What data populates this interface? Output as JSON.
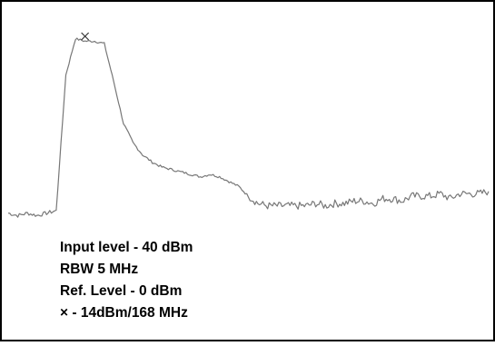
{
  "chart_data": {
    "type": "line",
    "title": "",
    "xlabel": "",
    "ylabel": "",
    "grid": false,
    "legend": "none",
    "x": [
      0,
      2,
      4,
      6,
      8,
      10,
      12,
      14,
      16,
      18,
      20,
      22,
      24,
      26,
      28,
      30,
      32,
      34,
      36,
      38,
      40,
      42,
      44,
      46,
      48,
      50,
      52,
      54,
      56,
      58,
      60,
      62,
      64,
      66,
      68,
      70,
      72,
      74,
      76,
      78,
      80,
      82,
      84,
      86,
      88,
      90,
      92,
      94,
      96,
      98,
      100
    ],
    "y": [
      -87,
      -88,
      -87,
      -88,
      -87,
      -86,
      -30,
      -15,
      -16,
      -16,
      -17,
      -33,
      -50,
      -58,
      -63,
      -66,
      -68,
      -69,
      -70,
      -71,
      -72,
      -71,
      -72,
      -74,
      -76,
      -80,
      -83,
      -84,
      -84,
      -84,
      -84,
      -84,
      -83,
      -84,
      -83,
      -83,
      -82,
      -82,
      -83,
      -81,
      -81,
      -82,
      -80,
      -80,
      -80,
      -79,
      -81,
      -79,
      -79,
      -79,
      -78
    ],
    "xlim": [
      0,
      100
    ],
    "ylim": [
      -110,
      -5
    ],
    "line_color": "#777777",
    "marker": {
      "x": 16,
      "y": -14
    },
    "annotations": [
      "Input level - 40 dBm",
      "RBW 5 MHz",
      "Ref. Level - 0 dBm",
      "× - 14dBm/168 MHz"
    ]
  }
}
